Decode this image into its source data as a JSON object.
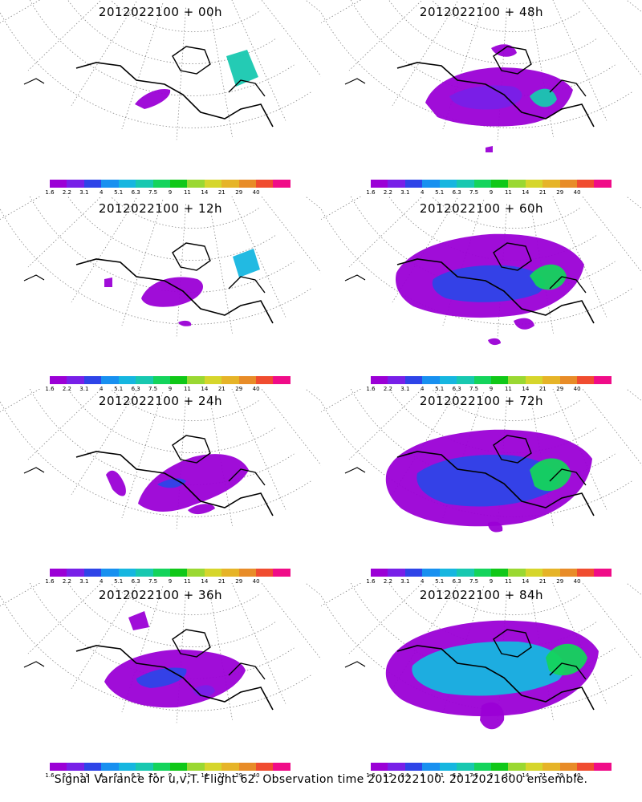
{
  "panels": [
    {
      "title": "2012022100 + 00h",
      "forecast_hour": 0
    },
    {
      "title": "2012022100 + 48h",
      "forecast_hour": 48
    },
    {
      "title": "2012022100 + 12h",
      "forecast_hour": 12
    },
    {
      "title": "2012022100 + 60h",
      "forecast_hour": 60
    },
    {
      "title": "2012022100 + 24h",
      "forecast_hour": 24
    },
    {
      "title": "2012022100 + 72h",
      "forecast_hour": 72
    },
    {
      "title": "2012022100 + 36h",
      "forecast_hour": 36
    },
    {
      "title": "2012022100 + 84h",
      "forecast_hour": 84
    }
  ],
  "colorbar": {
    "labels": [
      "1.6",
      "2.2",
      "3.1",
      "4",
      "5.1",
      "6.3",
      "7.5",
      "9",
      "11",
      "14",
      "21",
      "29",
      "40"
    ],
    "colors": [
      "#9b00d6",
      "#7820e8",
      "#2e44e8",
      "#1890f0",
      "#16b6e0",
      "#18c8b0",
      "#14d45c",
      "#10c818",
      "#9ad832",
      "#d6d62c",
      "#e6b428",
      "#e88c28",
      "#f04c30",
      "#f00c88"
    ]
  },
  "caption": "Signal Variance for u,v,T. Flight 62. Observation time 2012022100. 2012021600 ensemble."
}
